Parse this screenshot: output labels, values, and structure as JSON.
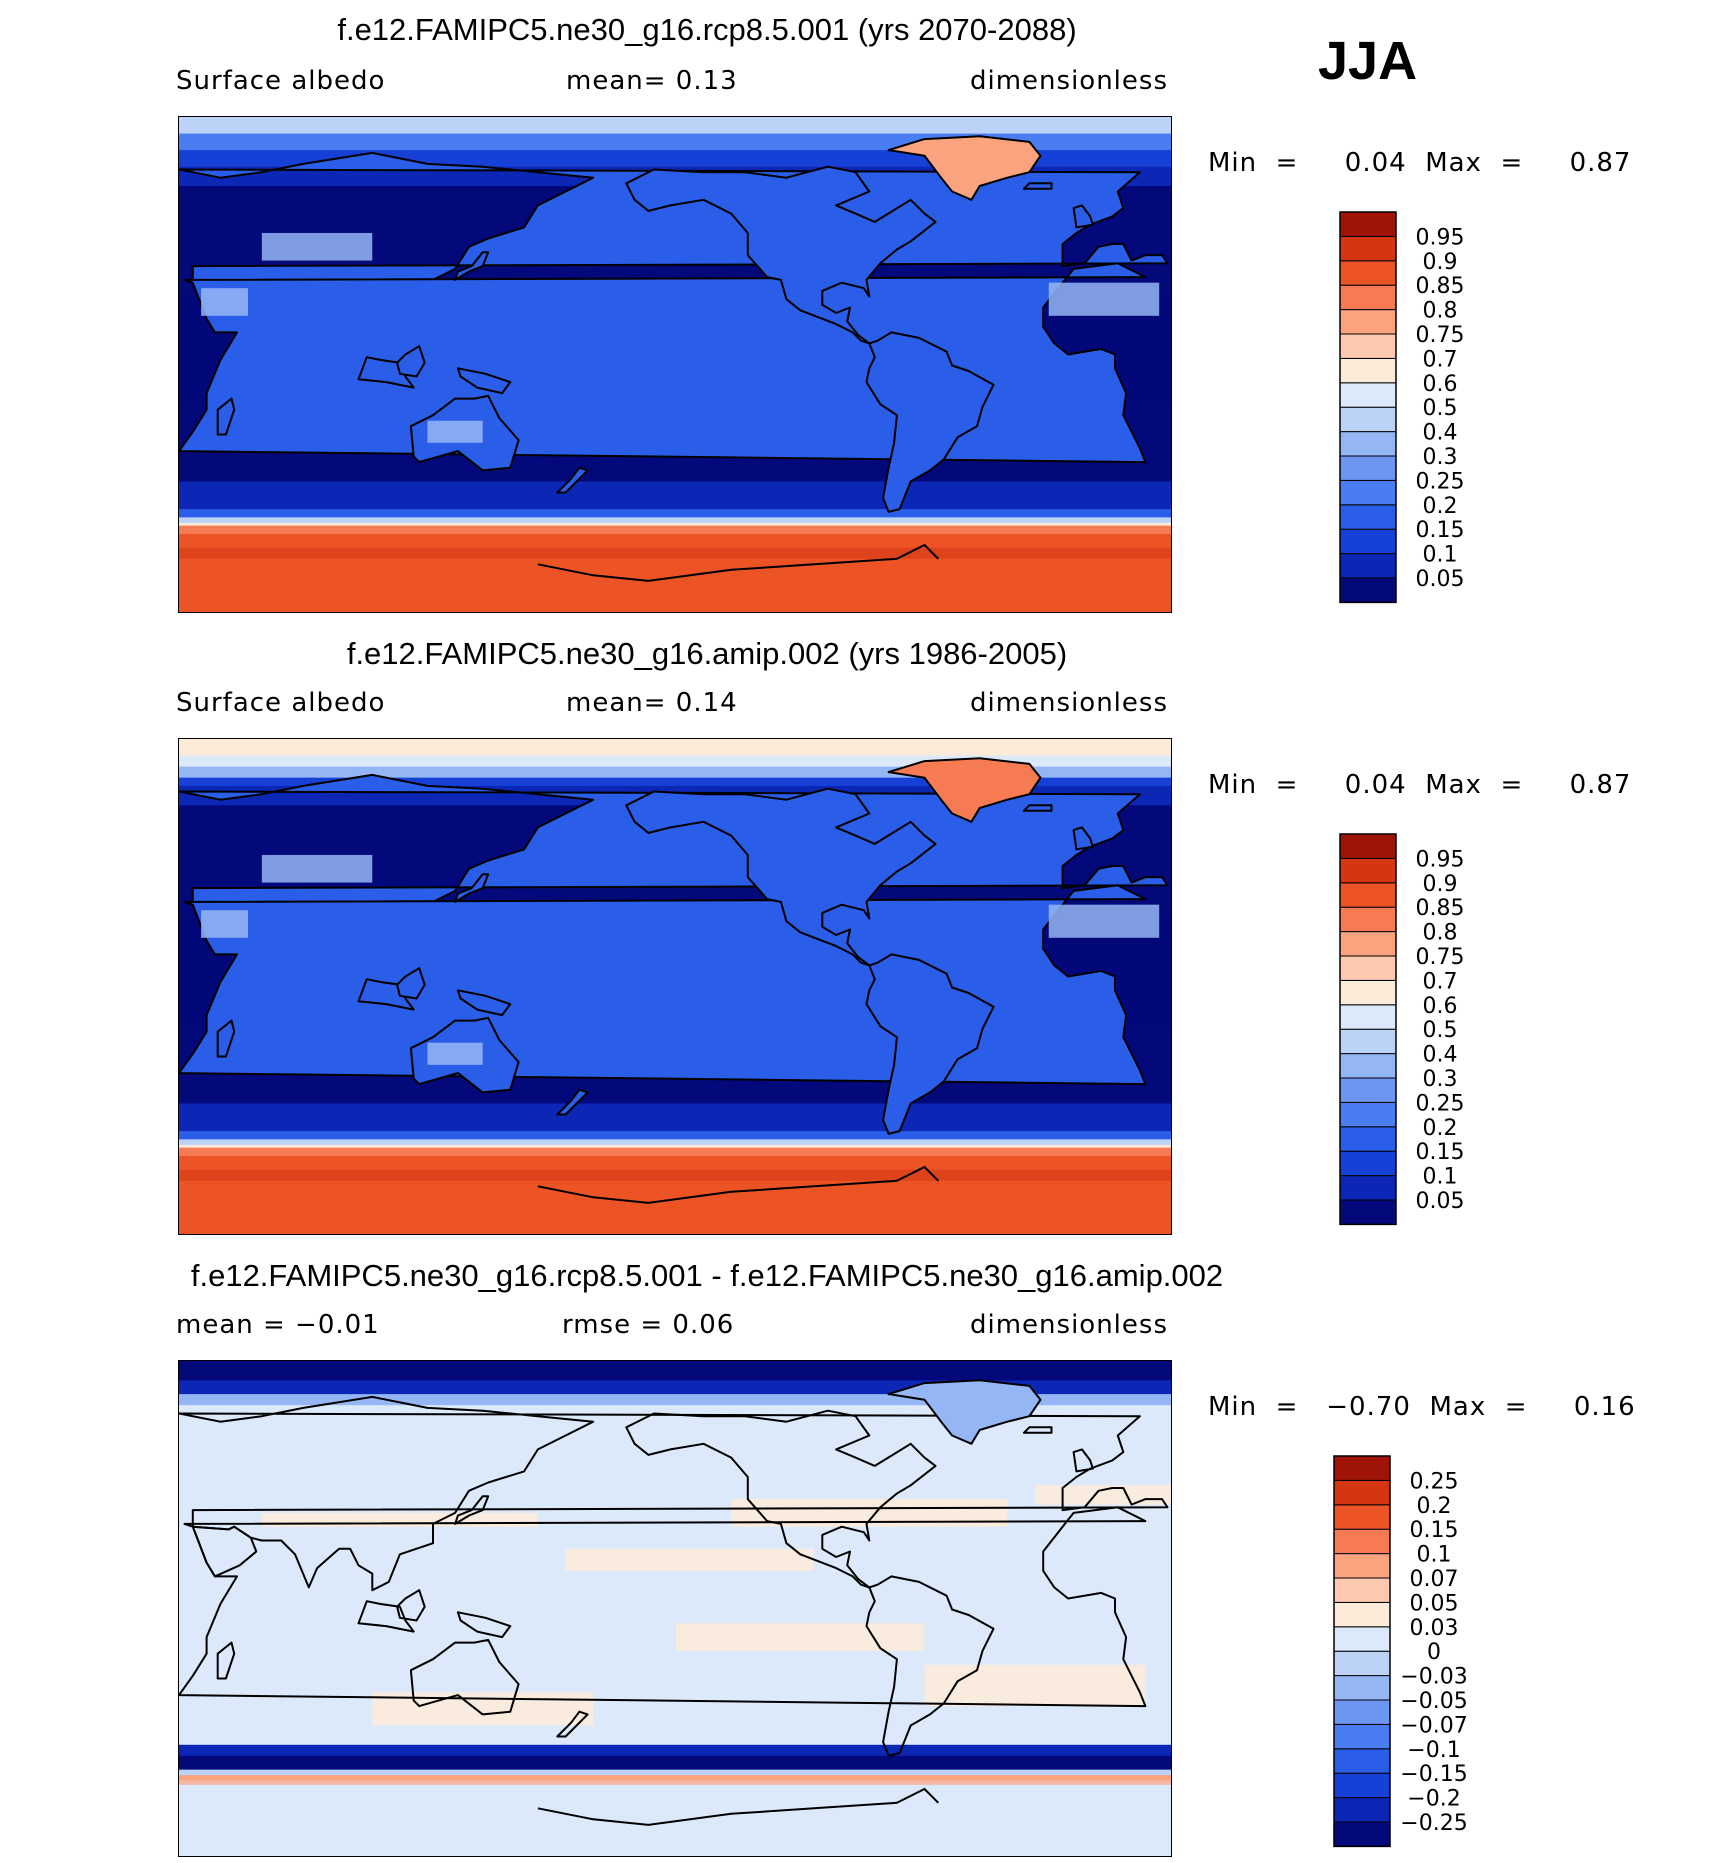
{
  "season": "JJA",
  "panels": [
    {
      "title": "f.e12.FAMIPC5.ne30_g16.rcp8.5.001 (yrs 2070-2088)",
      "left_label": "Surface  albedo",
      "mid_label": "mean=     0.13",
      "right_label": "dimensionless",
      "minmax": "Min  =     0.04  Max  =     0.87",
      "kind": "future"
    },
    {
      "title": "f.e12.FAMIPC5.ne30_g16.amip.002 (yrs 1986-2005)",
      "left_label": "Surface  albedo",
      "mid_label": "mean=     0.14",
      "right_label": "dimensionless",
      "minmax": "Min  =     0.04  Max  =     0.87",
      "kind": "present"
    },
    {
      "title": "f.e12.FAMIPC5.ne30_g16.rcp8.5.001 - f.e12.FAMIPC5.ne30_g16.amip.002",
      "left_label": "mean  =   −0.01",
      "mid_label": "rmse  =     0.06",
      "right_label": "dimensionless",
      "minmax": "Min  =   −0.70  Max  =     0.16",
      "kind": "diff"
    }
  ],
  "chart_data": [
    {
      "type": "heatmap",
      "title": "f.e12.FAMIPC5.ne30_g16.rcp8.5.001 (yrs 2070-2088)",
      "variable": "Surface albedo",
      "units": "dimensionless",
      "mean": 0.13,
      "min": 0.04,
      "max": 0.87,
      "colorbar_levels": [
        "0.05",
        "0.1",
        "0.15",
        "0.2",
        "0.25",
        "0.3",
        "0.4",
        "0.5",
        "0.6",
        "0.7",
        "0.75",
        "0.8",
        "0.85",
        "0.9",
        "0.95"
      ],
      "colorbar_colors": [
        "#03087a",
        "#0c26b6",
        "#1640d6",
        "#2a5ee8",
        "#4a7cf2",
        "#6c96f2",
        "#95b6f4",
        "#bcd2f7",
        "#dbe9fb",
        "#fcebd9",
        "#fdcab1",
        "#fba37f",
        "#f77b52",
        "#ec5426",
        "#d63512",
        "#9f1406"
      ]
    },
    {
      "type": "heatmap",
      "title": "f.e12.FAMIPC5.ne30_g16.amip.002 (yrs 1986-2005)",
      "variable": "Surface albedo",
      "units": "dimensionless",
      "mean": 0.14,
      "min": 0.04,
      "max": 0.87,
      "colorbar_levels": [
        "0.05",
        "0.1",
        "0.15",
        "0.2",
        "0.25",
        "0.3",
        "0.4",
        "0.5",
        "0.6",
        "0.7",
        "0.75",
        "0.8",
        "0.85",
        "0.9",
        "0.95"
      ],
      "colorbar_colors": [
        "#03087a",
        "#0c26b6",
        "#1640d6",
        "#2a5ee8",
        "#4a7cf2",
        "#6c96f2",
        "#95b6f4",
        "#bcd2f7",
        "#dbe9fb",
        "#fcebd9",
        "#fdcab1",
        "#fba37f",
        "#f77b52",
        "#ec5426",
        "#d63512",
        "#9f1406"
      ]
    },
    {
      "type": "heatmap",
      "title": "f.e12.FAMIPC5.ne30_g16.rcp8.5.001 - f.e12.FAMIPC5.ne30_g16.amip.002",
      "units": "dimensionless",
      "mean": -0.01,
      "rmse": 0.06,
      "min": -0.7,
      "max": 0.16,
      "colorbar_levels": [
        "−0.25",
        "−0.2",
        "−0.15",
        "−0.1",
        "−0.07",
        "−0.05",
        "−0.03",
        "0",
        "0.03",
        "0.05",
        "0.07",
        "0.1",
        "0.15",
        "0.2",
        "0.25"
      ],
      "colorbar_colors": [
        "#03087a",
        "#0c26b6",
        "#1640d6",
        "#2a5ee8",
        "#4a7cf2",
        "#6c96f2",
        "#95b6f4",
        "#bcd2f7",
        "#dbe9fb",
        "#fcebd9",
        "#fdcab1",
        "#fba37f",
        "#f77b52",
        "#ec5426",
        "#d63512",
        "#9f1406"
      ]
    }
  ]
}
